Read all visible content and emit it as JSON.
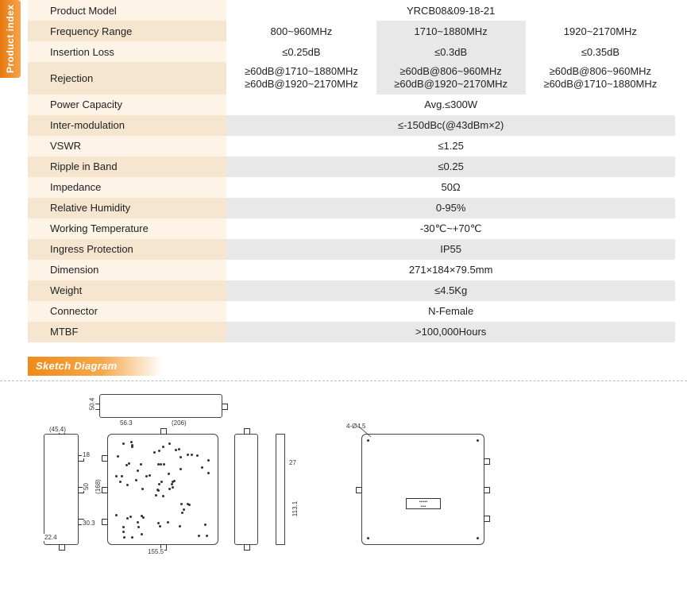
{
  "sideTab": "Product index",
  "colors": {
    "orange_grad_a": "#f5a44c",
    "orange_grad_b": "#e77a0f",
    "row_gray": "#e8e8e8",
    "label_tint_light": "#fdf3e6",
    "label_tint_dark": "#f6e5cf"
  },
  "spec": {
    "productModel": {
      "label": "Product Model",
      "value": "YRCB08&09-18-21"
    },
    "freqRange": {
      "label": "Frequency Range",
      "c1": "800~960MHz",
      "c2": "1710~1880MHz",
      "c3": "1920~2170MHz"
    },
    "insertion": {
      "label": "Insertion Loss",
      "c1": "≤0.25dB",
      "c2": "≤0.3dB",
      "c3": "≤0.35dB"
    },
    "rejection": {
      "label": "Rejection",
      "c1a": "≥60dB@1710~1880MHz",
      "c1b": "≥60dB@1920~2170MHz",
      "c2a": "≥60dB@806~960MHz",
      "c2b": "≥60dB@1920~2170MHz",
      "c3a": "≥60dB@806~960MHz",
      "c3b": "≥60dB@1710~1880MHz"
    },
    "power": {
      "label": "Power Capacity",
      "value": "Avg.≤300W"
    },
    "imd": {
      "label": "Inter-modulation",
      "value": "≤-150dBc(@43dBm×2)"
    },
    "vswr": {
      "label": "VSWR",
      "value": "≤1.25"
    },
    "ripple": {
      "label": "Ripple in Band",
      "value": "≤0.25"
    },
    "imp": {
      "label": "Impedance",
      "value": "50Ω"
    },
    "rh": {
      "label": "Relative Humidity",
      "value": "0-95%"
    },
    "temp": {
      "label": "Working Temperature",
      "value": "-30℃~+70℃"
    },
    "ip": {
      "label": "Ingress Protection",
      "value": "IP55"
    },
    "dim": {
      "label": "Dimension",
      "value": "271×184×79.5mm"
    },
    "wt": {
      "label": "Weight",
      "value": "≤4.5Kg"
    },
    "conn": {
      "label": "Connector",
      "value": "N-Female"
    },
    "mtbf": {
      "label": "MTBF",
      "value": ">100,000Hours"
    }
  },
  "sectionHeader": "Sketch Diagram",
  "diagram": {
    "dims": {
      "d454": "(45.4)",
      "d563": "56.3",
      "d206": "(206)",
      "d1555": "155.5",
      "d168": "(168)",
      "d50": "50",
      "d18": "18",
      "d303": "30.3",
      "d224": "22.4",
      "d504": "50.4",
      "d27": "27",
      "d1131": "113.1",
      "holes": "4-Ø4.5"
    }
  }
}
